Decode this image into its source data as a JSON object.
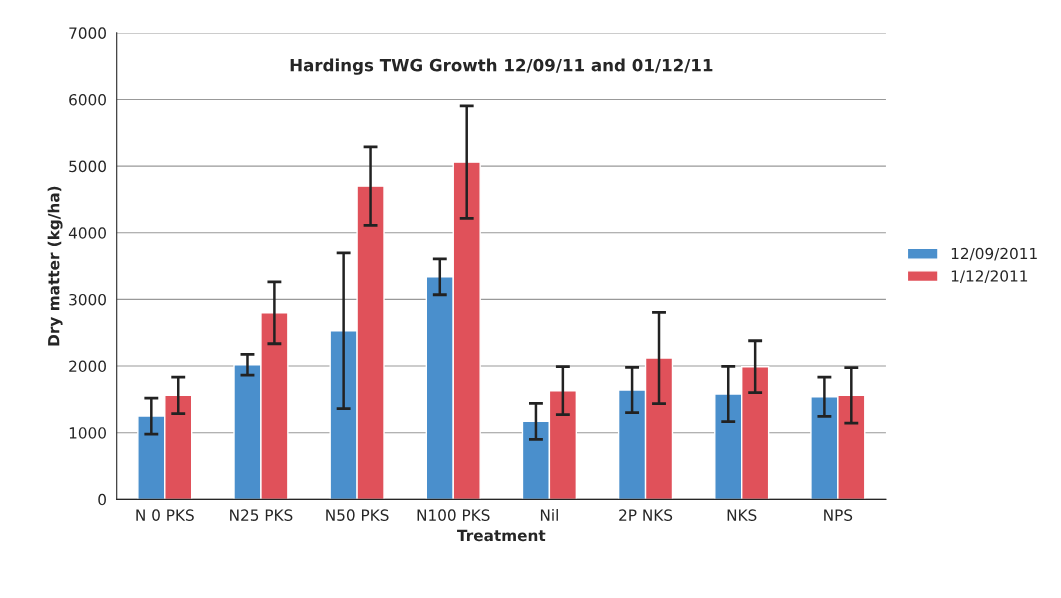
{
  "chart_data": {
    "type": "bar",
    "title": "Hardings TWG Growth 12/09/11 and 01/12/11",
    "xlabel": "Treatment",
    "ylabel": "Dry matter (kg/ha)",
    "categories": [
      "N 0 PKS",
      "N25 PKS",
      "N50 PKS",
      "N100 PKS",
      "Nil",
      "2P NKS",
      "NKS",
      "NPS"
    ],
    "series": [
      {
        "name": "12/09/2011",
        "color": "#4a8fcc",
        "values": [
          1250,
          2020,
          2530,
          3340,
          1170,
          1640,
          1580,
          1540
        ],
        "errors": [
          270,
          155,
          1170,
          270,
          270,
          340,
          415,
          295
        ]
      },
      {
        "name": "1/12/2011",
        "color": "#e0515a",
        "values": [
          1560,
          2800,
          4700,
          5060,
          1630,
          2120,
          1990,
          1560
        ],
        "errors": [
          275,
          465,
          590,
          845,
          360,
          685,
          390,
          415
        ]
      }
    ],
    "ylim": [
      0,
      7000
    ],
    "yticks": [
      0,
      1000,
      2000,
      3000,
      4000,
      5000,
      6000,
      7000
    ],
    "grid": "y",
    "legend": "right"
  }
}
